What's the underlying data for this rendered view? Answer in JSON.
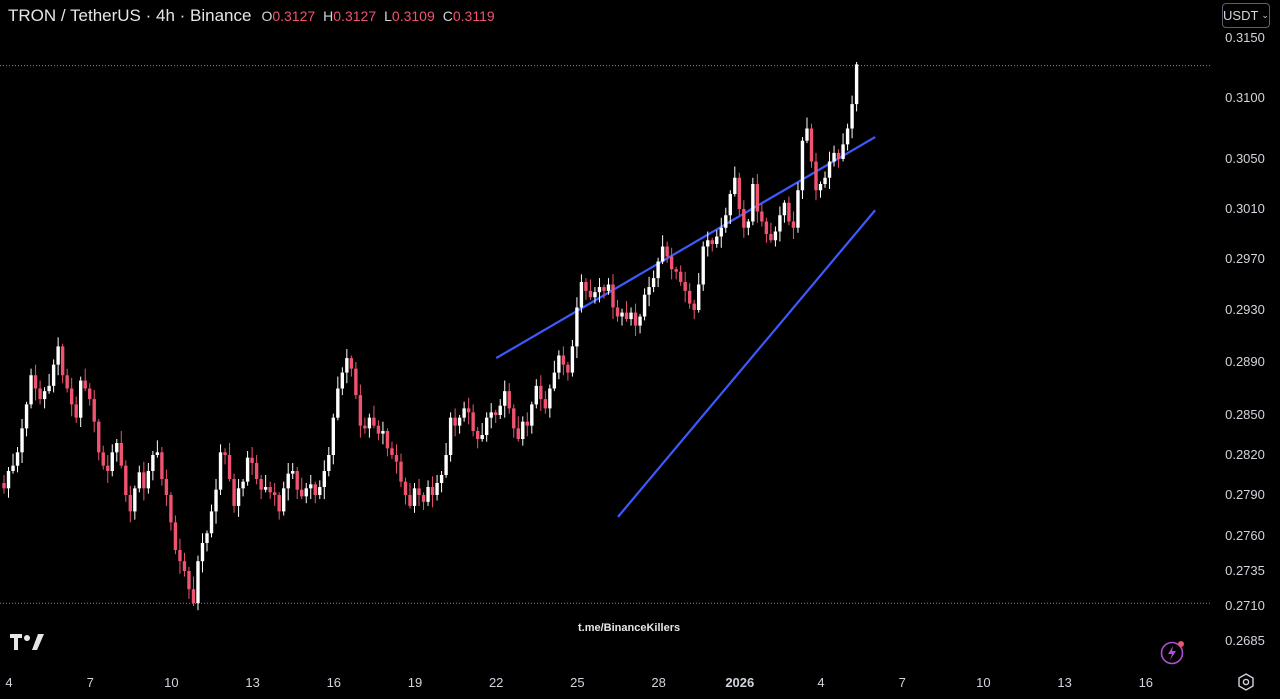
{
  "header": {
    "title": "TRON / TetherUS · 4h · Binance",
    "ohlc": [
      {
        "key": "O",
        "value": "0.3127"
      },
      {
        "key": "H",
        "value": "0.3127"
      },
      {
        "key": "L",
        "value": "0.3109"
      },
      {
        "key": "C",
        "value": "0.3119"
      }
    ]
  },
  "currency_button": {
    "label": "USDT"
  },
  "watermark": "t.me/BinanceKillers",
  "colors": {
    "up": "#ffffff",
    "down": "#ef5370",
    "trendline": "#3d5afe",
    "background": "#000000",
    "text": "#d1d4dc"
  },
  "icons": [
    "tradingview-logo-icon",
    "chevron-down-icon",
    "flash-icon",
    "settings-icon"
  ],
  "chart_data": {
    "type": "candlestick",
    "title": "TRON / TetherUS · 4h · Binance",
    "x_ticks": [
      "4",
      "7",
      "10",
      "13",
      "16",
      "19",
      "22",
      "25",
      "28",
      "2026",
      "4",
      "7",
      "10",
      "13",
      "16"
    ],
    "y_ticks": [
      "0.3150",
      "0.3100",
      "0.3050",
      "0.3010",
      "0.2970",
      "0.2930",
      "0.2890",
      "0.2850",
      "0.2820",
      "0.2790",
      "0.2760",
      "0.2735",
      "0.2710",
      "0.2685"
    ],
    "ylim": [
      0.2685,
      0.315
    ],
    "interval": "4h",
    "candles_per_day": 6,
    "x_start_day": 4,
    "series_close": [
      0.2795,
      0.2808,
      0.2812,
      0.2822,
      0.284,
      0.2858,
      0.288,
      0.287,
      0.2862,
      0.2868,
      0.2872,
      0.2888,
      0.2902,
      0.288,
      0.287,
      0.2858,
      0.2848,
      0.2876,
      0.287,
      0.2862,
      0.2845,
      0.2822,
      0.2812,
      0.2808,
      0.2822,
      0.2829,
      0.2812,
      0.279,
      0.2778,
      0.2795,
      0.2807,
      0.2795,
      0.2808,
      0.282,
      0.2822,
      0.2802,
      0.279,
      0.277,
      0.275,
      0.2742,
      0.2735,
      0.2722,
      0.2712,
      0.2742,
      0.2755,
      0.2762,
      0.2778,
      0.2794,
      0.2822,
      0.282,
      0.2802,
      0.2782,
      0.2795,
      0.28,
      0.2818,
      0.2814,
      0.2802,
      0.2794,
      0.2796,
      0.2792,
      0.279,
      0.2778,
      0.2795,
      0.2806,
      0.2808,
      0.2794,
      0.2789,
      0.2795,
      0.2798,
      0.279,
      0.2796,
      0.2808,
      0.282,
      0.2848,
      0.287,
      0.2882,
      0.2893,
      0.2885,
      0.2865,
      0.2842,
      0.284,
      0.2848,
      0.2842,
      0.2836,
      0.2838,
      0.2825,
      0.282,
      0.2815,
      0.28,
      0.279,
      0.2782,
      0.2795,
      0.279,
      0.2785,
      0.2796,
      0.279,
      0.2799,
      0.2805,
      0.282,
      0.2848,
      0.2842,
      0.2848,
      0.2855,
      0.2852,
      0.2838,
      0.2832,
      0.2835,
      0.2848,
      0.2852,
      0.285,
      0.2857,
      0.2868,
      0.2855,
      0.284,
      0.2832,
      0.2845,
      0.2842,
      0.2858,
      0.2872,
      0.2862,
      0.2855,
      0.287,
      0.2882,
      0.2895,
      0.2888,
      0.2882,
      0.2902,
      0.2932,
      0.2952,
      0.2945,
      0.294,
      0.2944,
      0.2948,
      0.2945,
      0.295,
      0.2932,
      0.2925,
      0.2928,
      0.2923,
      0.2928,
      0.2918,
      0.2925,
      0.2942,
      0.2948,
      0.2955,
      0.2968,
      0.298,
      0.2972,
      0.2962,
      0.296,
      0.2952,
      0.2945,
      0.2935,
      0.293,
      0.295,
      0.298,
      0.2985,
      0.2982,
      0.2988,
      0.2995,
      0.3005,
      0.3022,
      0.3035,
      0.301,
      0.2995,
      0.3,
      0.303,
      0.3008,
      0.3,
      0.299,
      0.2985,
      0.2992,
      0.3005,
      0.3015,
      0.3,
      0.2995,
      0.3025,
      0.3065,
      0.3075,
      0.3048,
      0.3025,
      0.303,
      0.3035,
      0.3048,
      0.3055,
      0.305,
      0.3062,
      0.3075,
      0.3095,
      0.3128
    ],
    "trendlines": [
      {
        "name": "upper",
        "points": [
          [
            22.0,
            0.2893
          ],
          [
            36.0,
            0.3068
          ]
        ]
      },
      {
        "name": "lower",
        "points": [
          [
            26.5,
            0.2774
          ],
          [
            36.0,
            0.3009
          ]
        ]
      }
    ],
    "reference_lines": [
      0.3127,
      0.2712
    ],
    "grid": false,
    "legend": "none"
  }
}
